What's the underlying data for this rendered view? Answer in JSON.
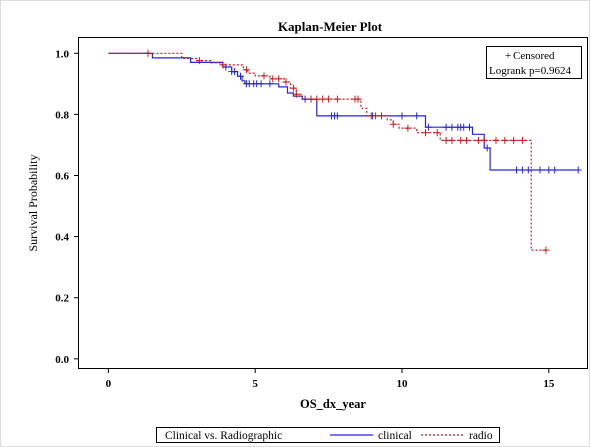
{
  "chart_data": {
    "type": "line",
    "title": "Kaplan-Meier Plot",
    "xlabel": "OS_dx_year",
    "ylabel": "Survival Probability",
    "xlim": [
      -1,
      16.3
    ],
    "ylim": [
      -0.03,
      1.05
    ],
    "x_ticks": [
      0,
      5,
      10,
      15
    ],
    "y_ticks": [
      0.0,
      0.2,
      0.4,
      0.6,
      0.8,
      1.0
    ],
    "x_tick_labels": [
      "0",
      "5",
      "10",
      "15"
    ],
    "y_tick_labels": [
      "0.0",
      "0.2",
      "0.4",
      "0.6",
      "0.8",
      "1.0"
    ],
    "inset_legend": {
      "censored_label": "Censored",
      "censored_symbol": "+",
      "logrank_label": "Logrank p=0.9624"
    },
    "legend": {
      "title": "Clinical vs. Radiographic",
      "position": "bottom"
    },
    "series": [
      {
        "name": "clinical",
        "color": "#2626d9",
        "dash": "solid",
        "steps": [
          [
            0,
            1.0
          ],
          [
            1.5,
            0.985
          ],
          [
            2.8,
            0.97
          ],
          [
            3.9,
            0.955
          ],
          [
            4.2,
            0.94
          ],
          [
            4.4,
            0.925
          ],
          [
            4.55,
            0.91
          ],
          [
            4.65,
            0.9
          ],
          [
            5.2,
            0.9
          ],
          [
            5.8,
            0.89
          ],
          [
            6.1,
            0.87
          ],
          [
            6.3,
            0.86
          ],
          [
            6.6,
            0.85
          ],
          [
            7.1,
            0.795
          ],
          [
            10.8,
            0.758
          ],
          [
            12.4,
            0.735
          ],
          [
            12.8,
            0.69
          ],
          [
            13.0,
            0.618
          ],
          [
            16.0,
            0.618
          ]
        ],
        "censored": [
          1.35,
          4.0,
          4.2,
          4.3,
          4.5,
          4.7,
          4.8,
          4.95,
          5.05,
          5.2,
          5.5,
          6.7,
          6.9,
          7.6,
          7.7,
          7.8,
          9.0,
          10.0,
          10.5,
          10.9,
          11.5,
          11.7,
          11.9,
          12.0,
          12.1,
          12.3,
          12.9,
          13.9,
          14.1,
          14.3,
          14.7,
          15.0,
          15.2,
          16.0
        ]
      },
      {
        "name": "radio",
        "color": "#c21c1c",
        "dash": "dashed",
        "steps": [
          [
            0,
            1.0
          ],
          [
            2.5,
            0.983
          ],
          [
            3.0,
            0.976
          ],
          [
            3.5,
            0.969
          ],
          [
            3.8,
            0.962
          ],
          [
            4.6,
            0.946
          ],
          [
            4.75,
            0.935
          ],
          [
            5.0,
            0.926
          ],
          [
            5.5,
            0.916
          ],
          [
            6.0,
            0.906
          ],
          [
            6.2,
            0.886
          ],
          [
            6.4,
            0.866
          ],
          [
            6.6,
            0.85
          ],
          [
            8.6,
            0.82
          ],
          [
            8.8,
            0.795
          ],
          [
            9.5,
            0.782
          ],
          [
            9.7,
            0.768
          ],
          [
            9.9,
            0.755
          ],
          [
            10.5,
            0.74
          ],
          [
            11.3,
            0.715
          ],
          [
            14.4,
            0.356
          ],
          [
            14.9,
            0.356
          ]
        ],
        "censored": [
          1.35,
          3.1,
          3.9,
          4.7,
          5.3,
          5.6,
          5.8,
          6.05,
          6.3,
          6.4,
          6.9,
          7.1,
          7.3,
          7.5,
          7.8,
          8.4,
          8.5,
          8.95,
          9.1,
          9.3,
          9.7,
          10.2,
          10.8,
          11.2,
          11.5,
          11.7,
          12.0,
          12.2,
          12.6,
          12.8,
          13.2,
          13.5,
          13.8,
          14.1,
          14.9
        ]
      }
    ]
  }
}
